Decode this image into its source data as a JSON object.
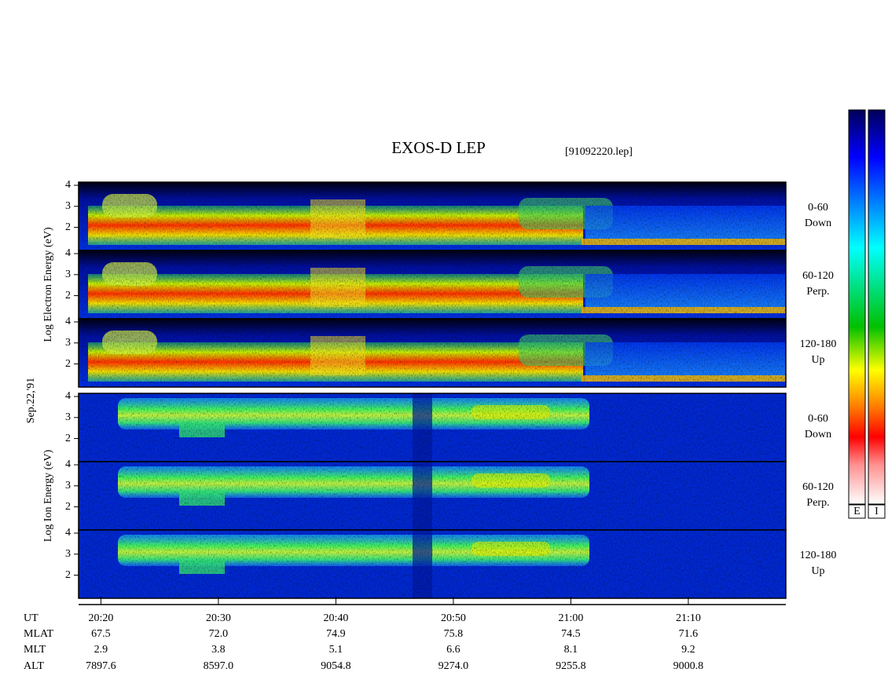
{
  "chart_data": {
    "type": "spectrogram",
    "title": "EXOS-D LEP",
    "file": "[91092220.lep]",
    "date": "Sep.22,'91",
    "groups": [
      {
        "label": "Log Electron Energy (eV)",
        "panels": [
          {
            "label": [
              "0-60",
              "Down"
            ]
          },
          {
            "label": [
              "60-120",
              "Perp."
            ]
          },
          {
            "label": [
              "120-180",
              "Up"
            ]
          }
        ]
      },
      {
        "label": "Log Ion Energy (eV)",
        "panels": [
          {
            "label": [
              "0-60",
              "Down"
            ]
          },
          {
            "label": [
              "60-120",
              "Perp."
            ]
          },
          {
            "label": [
              "120-180",
              "Up"
            ]
          }
        ]
      }
    ],
    "ylim": [
      0.9,
      4.15
    ],
    "yticks": [
      2,
      3,
      4
    ],
    "xlim": [
      1218.1,
      1278.3
    ],
    "xticks": [
      {
        "value": 1220,
        "label": "20:20"
      },
      {
        "value": 1230,
        "label": "20:30"
      },
      {
        "value": 1240,
        "label": "20:40"
      },
      {
        "value": 1250,
        "label": "20:50"
      },
      {
        "value": 1260,
        "label": "21:00"
      },
      {
        "value": 1270,
        "label": "21:10"
      }
    ],
    "x_label": "UT",
    "ephemeris": [
      {
        "name": "MLAT",
        "values": [
          "67.5",
          "72.0",
          "74.9",
          "75.8",
          "74.5",
          "71.6"
        ]
      },
      {
        "name": "MLT",
        "values": [
          "2.9",
          "3.8",
          "5.1",
          "6.6",
          "8.1",
          "9.2"
        ]
      },
      {
        "name": "ALT",
        "values": [
          "7897.6",
          "8597.0",
          "9054.8",
          "9274.0",
          "9255.8",
          "9000.8"
        ]
      }
    ],
    "colorbars": [
      "E",
      "I"
    ]
  }
}
